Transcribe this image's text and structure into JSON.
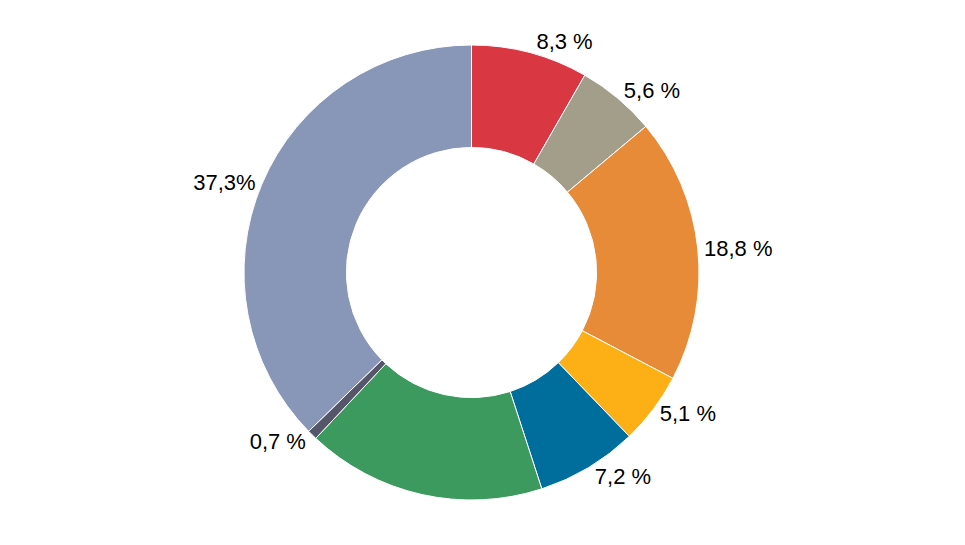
{
  "chart_data": {
    "type": "pie",
    "values": [
      8.3,
      5.6,
      18.8,
      5.1,
      7.2,
      17.0,
      0.7,
      37.3
    ],
    "value_labels": [
      "8,3 %",
      "5,6 %",
      "18,8 %",
      "5,1 %",
      "7,2 %",
      null,
      "0,7 %",
      "37,3%"
    ],
    "colors": [
      "#d93742",
      "#a39e8a",
      "#e88b38",
      "#fdb016",
      "#006e9c",
      "#3c9a5f",
      "#55566a",
      "#8896b8"
    ],
    "data_labels": true
  }
}
